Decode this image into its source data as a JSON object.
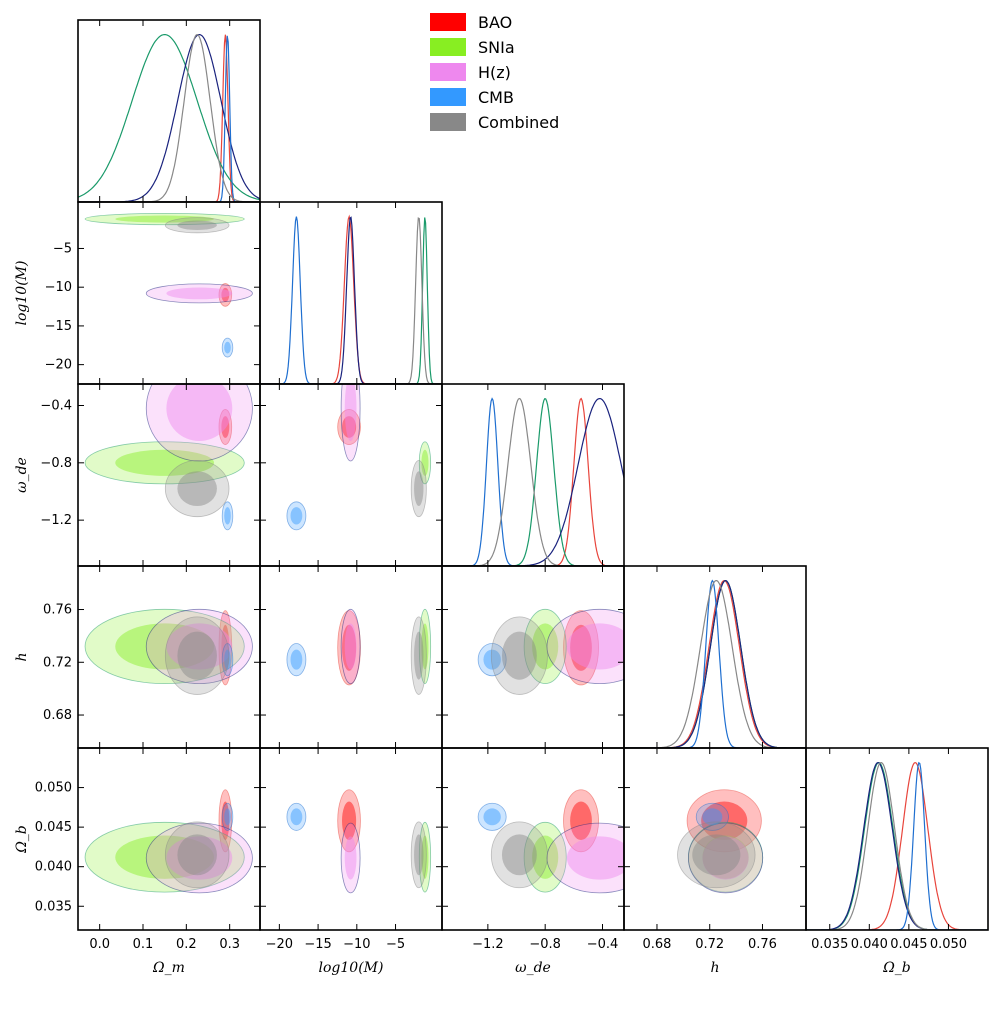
{
  "chart_data": {
    "type": "triangle-posterior",
    "parameters": [
      {
        "id": "Om",
        "label": "Ω_m",
        "range": [
          -0.05,
          0.37
        ],
        "ticks": [
          0.0,
          0.1,
          0.2,
          0.3
        ],
        "tick_labels": [
          "0.0",
          "0.1",
          "0.2",
          "0.3"
        ]
      },
      {
        "id": "logM",
        "label": "log10(M)",
        "range": [
          -22.5,
          1.0
        ],
        "ticks": [
          -20,
          -15,
          -10,
          -5
        ],
        "tick_labels": [
          "−20",
          "−15",
          "−10",
          "−5"
        ]
      },
      {
        "id": "wde",
        "label": "ω_de",
        "range": [
          -1.52,
          -0.25
        ],
        "ticks": [
          -1.2,
          -0.8,
          -0.4
        ],
        "tick_labels": [
          "−1.2",
          "−0.8",
          "−0.4"
        ]
      },
      {
        "id": "h",
        "label": "h",
        "range": [
          0.655,
          0.793
        ],
        "ticks": [
          0.68,
          0.72,
          0.76
        ],
        "tick_labels": [
          "0.68",
          "0.72",
          "0.76"
        ]
      },
      {
        "id": "Ob",
        "label": "Ω_b",
        "range": [
          0.032,
          0.055
        ],
        "ticks": [
          0.035,
          0.04,
          0.045,
          0.05
        ],
        "tick_labels": [
          "0.035",
          "0.040",
          "0.045",
          "0.050"
        ]
      }
    ],
    "legend": [
      {
        "name": "BAO",
        "fill": "#ff0000",
        "line": "#e8453c"
      },
      {
        "name": "SNIa",
        "fill": "#88ee22",
        "line": "#1a9a6a"
      },
      {
        "name": "H(z)",
        "fill": "#ee88ee",
        "line": "#1a237e"
      },
      {
        "name": "CMB",
        "fill": "#3399ff",
        "line": "#1f6fd0"
      },
      {
        "name": "Combined",
        "fill": "#888888",
        "line": "#888888"
      }
    ],
    "series": [
      {
        "name": "BAO",
        "fill": "#ff0000",
        "line": "#e8453c",
        "mean": {
          "Om": 0.29,
          "logM": -11.0,
          "wde": -0.55,
          "h": 0.731,
          "Ob": 0.0458
        },
        "sd": {
          "Om": 0.006,
          "logM": 0.6,
          "wde": 0.05,
          "h": 0.0115,
          "Ob": 0.0016
        }
      },
      {
        "name": "SNIa",
        "fill": "#88ee22",
        "line": "#1a9a6a",
        "mean": {
          "Om": 0.15,
          "logM": -1.2,
          "wde": -0.8,
          "h": 0.732,
          "Ob": 0.0412
        },
        "sd": {
          "Om": 0.075,
          "logM": 0.3,
          "wde": 0.06,
          "h": 0.0115,
          "Ob": 0.0018
        }
      },
      {
        "name": "H(z)",
        "fill": "#ee88ee",
        "line": "#1a237e",
        "mean": {
          "Om": 0.23,
          "logM": -10.8,
          "wde": -0.42,
          "h": 0.732,
          "Ob": 0.0411
        },
        "sd": {
          "Om": 0.05,
          "logM": 0.5,
          "wde": 0.15,
          "h": 0.0115,
          "Ob": 0.0018
        }
      },
      {
        "name": "CMB",
        "fill": "#3399ff",
        "line": "#1f6fd0",
        "mean": {
          "Om": 0.295,
          "logM": -17.8,
          "wde": -1.17,
          "h": 0.722,
          "Ob": 0.0463
        },
        "sd": {
          "Om": 0.005,
          "logM": 0.5,
          "wde": 0.04,
          "h": 0.005,
          "Ob": 0.0007
        }
      },
      {
        "name": "Combined",
        "fill": "#888888",
        "line": "#888888",
        "mean": {
          "Om": 0.225,
          "logM": -2.0,
          "wde": -0.98,
          "h": 0.725,
          "Ob": 0.0415
        },
        "sd": {
          "Om": 0.03,
          "logM": 0.4,
          "wde": 0.08,
          "h": 0.012,
          "Ob": 0.0017
        }
      }
    ]
  }
}
